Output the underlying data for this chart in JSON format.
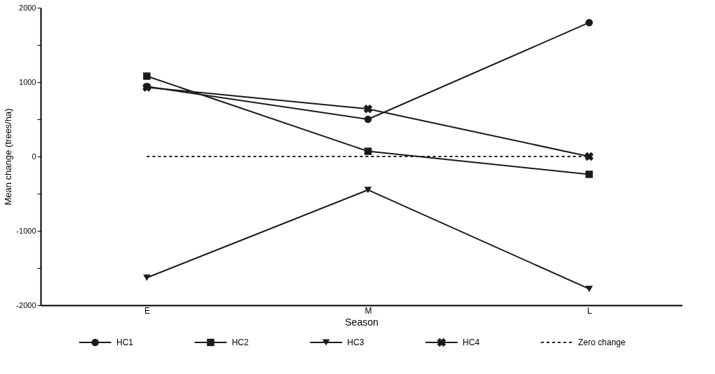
{
  "chart_data": {
    "type": "line",
    "xlabel": "Season",
    "ylabel": "Mean change (trees/ha)",
    "categories": [
      "E",
      "M",
      "L"
    ],
    "ylim": [
      -2000,
      2000
    ],
    "yticks": [
      -2000,
      {
        "value": -1500,
        "label": null
      },
      -1000,
      {
        "value": -500,
        "label": null
      },
      0,
      {
        "value": 500,
        "label": null
      },
      1000,
      {
        "value": 1500,
        "label": null
      },
      2000
    ],
    "grid": false,
    "legend": "bottom",
    "line_style": "solid",
    "series": [
      {
        "name": "HC1",
        "color": "#1a1a1a",
        "marker": "circle",
        "values": [
          940,
          500,
          1800
        ]
      },
      {
        "name": "HC2",
        "color": "#1a1a1a",
        "marker": "square",
        "values": [
          1080,
          70,
          -240
        ]
      },
      {
        "name": "HC3",
        "color": "#1a1a1a",
        "marker": "triangle",
        "values": [
          -1630,
          -450,
          -1780
        ]
      },
      {
        "name": "HC4",
        "color": "#1a1a1a",
        "marker": "cross",
        "values": [
          930,
          640,
          0
        ]
      },
      {
        "name": "Zero change",
        "color": "#1a1a1a",
        "marker": "none",
        "line_style": "dashed",
        "values": [
          0,
          0,
          0
        ]
      }
    ]
  }
}
